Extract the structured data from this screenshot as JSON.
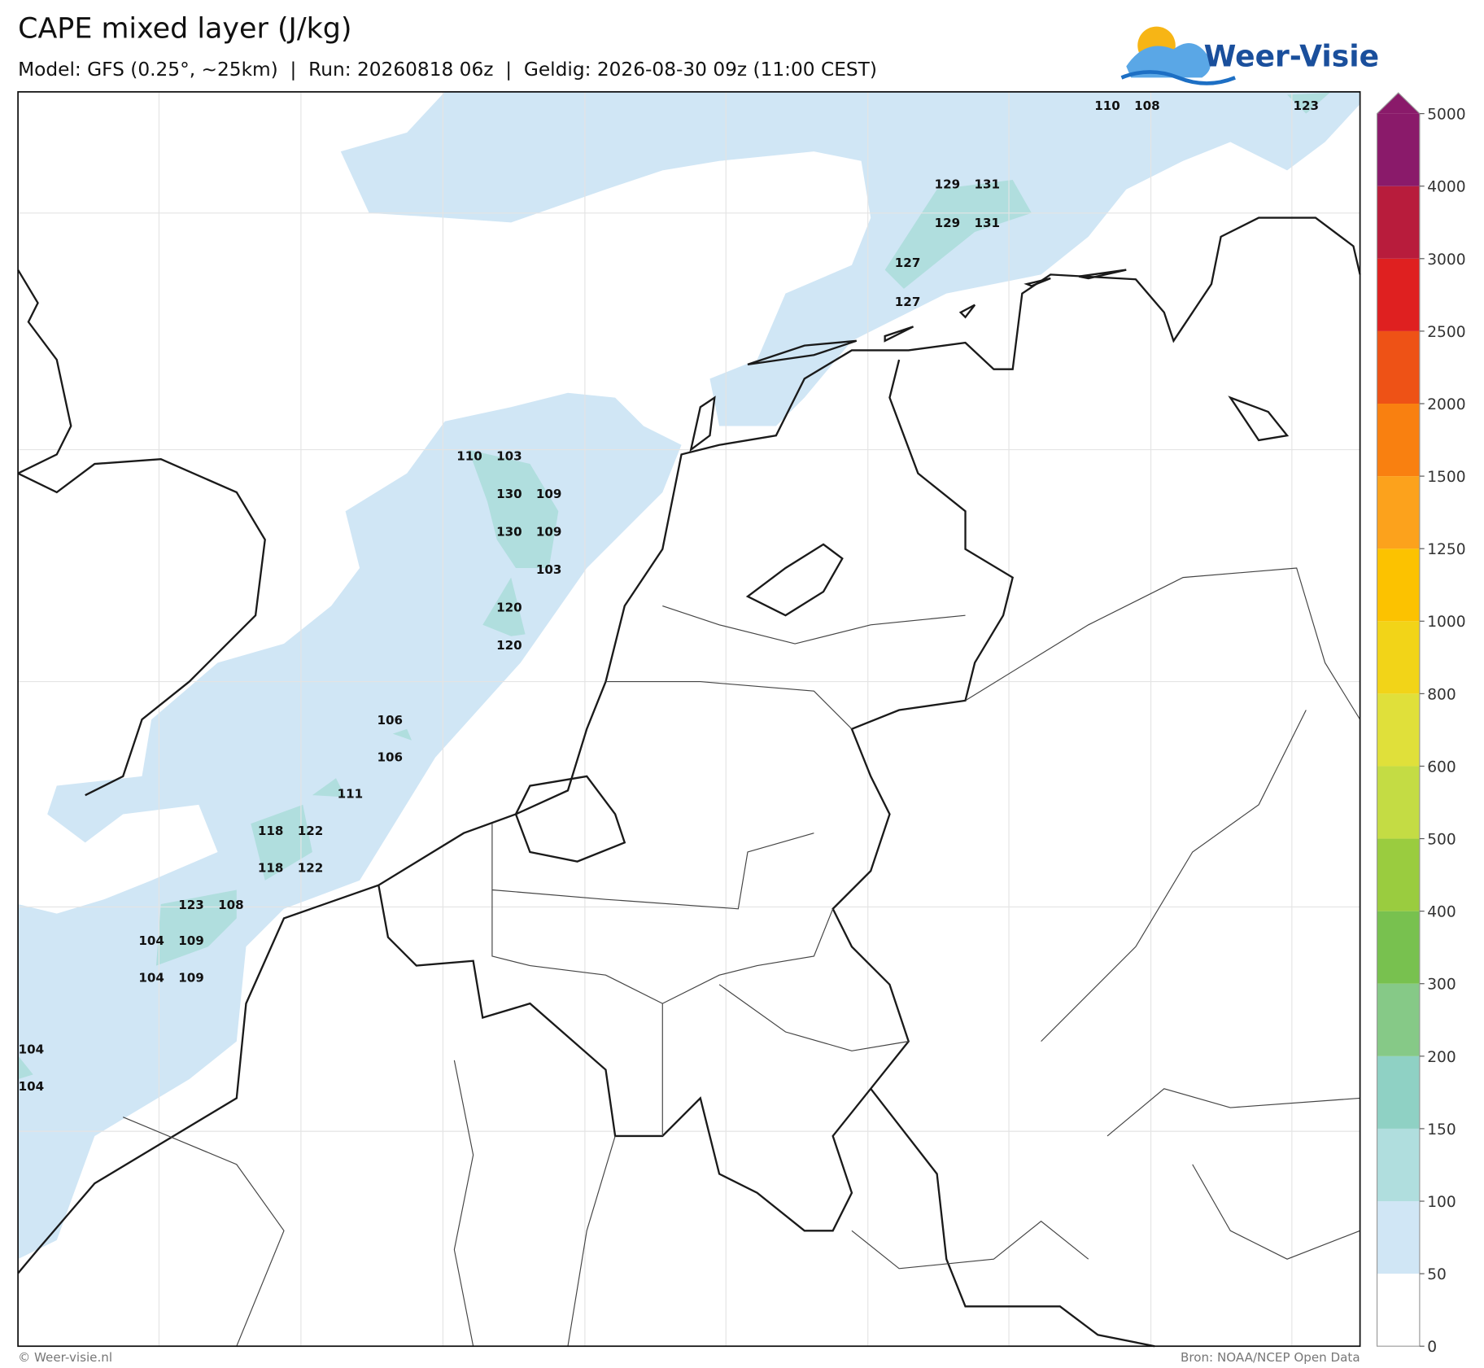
{
  "header": {
    "title": "CAPE mixed layer (J/kg)",
    "subtitle": "Model: GFS (0.25°, ~25km)  |  Run: 20260818 06z  |  Geldig: 2026-08-30 09z (11:00 CEST)",
    "logo": "Weer-Visie"
  },
  "map_labels": [
    110,
    108,
    123,
    129,
    131,
    129,
    131,
    127,
    127,
    110,
    103,
    130,
    109,
    130,
    109,
    103,
    120,
    120,
    106,
    106,
    111,
    118,
    122,
    118,
    122,
    123,
    108,
    104,
    109,
    104,
    109,
    104,
    104
  ],
  "colorbar": {
    "ticks": [
      0,
      50,
      100,
      150,
      200,
      300,
      400,
      500,
      600,
      800,
      1000,
      1250,
      1500,
      2000,
      2500,
      3000,
      4000,
      5000
    ],
    "colors": [
      "#ffffff",
      "#d0e6f5",
      "#b0dede",
      "#8fd1c4",
      "#86c987",
      "#78c14f",
      "#9acc3f",
      "#c4dc44",
      "#e0e03a",
      "#f2d418",
      "#fcc200",
      "#fca21c",
      "#f98010",
      "#ee5216",
      "#df2020",
      "#b81c3c",
      "#8a1a6a"
    ],
    "extend_color": "#8a1a6a"
  },
  "footer": {
    "left": "© Weer-visie.nl",
    "right": "Bron: NOAA/NCEP Open Data"
  }
}
